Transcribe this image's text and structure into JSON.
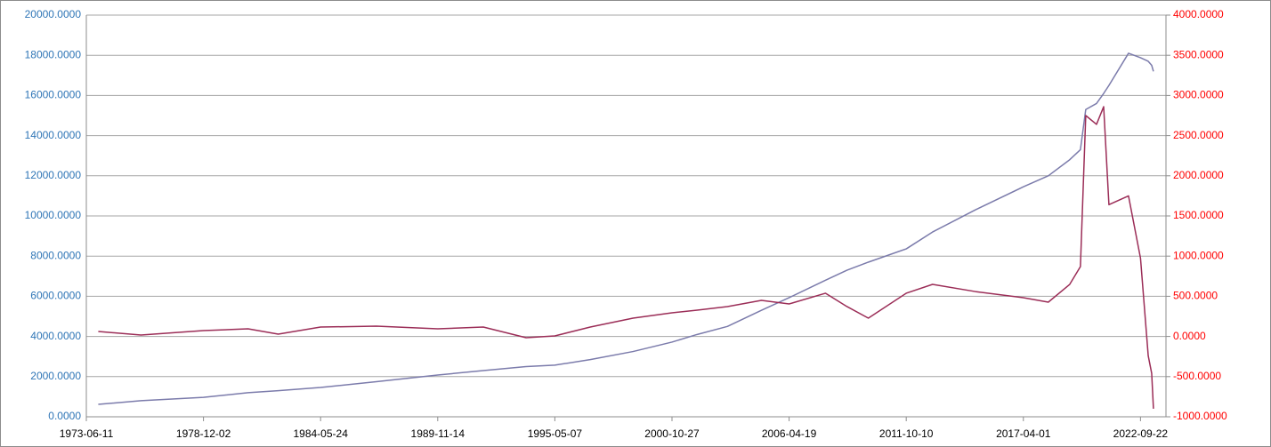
{
  "chart_data": {
    "type": "line",
    "x": [
      "1974-01-01",
      "1976-01-01",
      "1978-12-02",
      "1981-01-01",
      "1982-06-01",
      "1984-05-24",
      "1987-01-01",
      "1989-11-14",
      "1992-01-01",
      "1994-01-01",
      "1995-05-07",
      "1997-01-01",
      "1999-01-01",
      "2000-10-27",
      "2002-01-01",
      "2003-06-01",
      "2005-01-01",
      "2006-04-19",
      "2008-01-01",
      "2009-01-01",
      "2010-01-01",
      "2011-10-10",
      "2013-01-01",
      "2015-01-01",
      "2017-04-01",
      "2018-06-01",
      "2019-06-01",
      "2019-12-01",
      "2020-03-01",
      "2020-09-01",
      "2021-01-01",
      "2021-04-01",
      "2022-03-01",
      "2022-09-22",
      "2023-02-01",
      "2023-04-01",
      "2023-05-01"
    ],
    "series": [
      {
        "color": "#7b7bab",
        "values": [
          620,
          800,
          970,
          1200,
          1300,
          1460,
          1750,
          2080,
          2300,
          2500,
          2570,
          2850,
          3250,
          3720,
          4100,
          4500,
          5300,
          5930,
          6800,
          7300,
          7700,
          8360,
          9200,
          10300,
          11450,
          12000,
          12800,
          13300,
          15300,
          15600,
          16100,
          16500,
          18100,
          17880,
          17700,
          17500,
          17200
        ]
      },
      {
        "color": "#9b2d57",
        "axis": "y2",
        "values": [
          62,
          18,
          73,
          95,
          29,
          117,
          128,
          95,
          117,
          -15,
          7,
          117,
          228,
          294,
          327,
          372,
          449,
          405,
          538,
          372,
          228,
          538,
          648,
          559,
          482,
          427,
          648,
          869,
          2750,
          2640,
          2860,
          1640,
          1750,
          975,
          -240,
          -460,
          -900
        ]
      }
    ],
    "xlim": [
      "1973-06-11",
      "2023-12-01"
    ],
    "xticks": [
      "1973-06-11",
      "1978-12-02",
      "1984-05-24",
      "1989-11-14",
      "1995-05-07",
      "2000-10-27",
      "2006-04-19",
      "2011-10-10",
      "2017-04-01",
      "2022-09-22"
    ],
    "ylim": [
      0,
      20000
    ],
    "yticks": [
      {
        "value": 0,
        "label": "0.0000"
      },
      {
        "value": 2000,
        "label": "2000.0000"
      },
      {
        "value": 4000,
        "label": "4000.0000"
      },
      {
        "value": 6000,
        "label": "6000.0000"
      },
      {
        "value": 8000,
        "label": "8000.0000"
      },
      {
        "value": 10000,
        "label": "10000.0000"
      },
      {
        "value": 12000,
        "label": "12000.0000"
      },
      {
        "value": 14000,
        "label": "14000.0000"
      },
      {
        "value": 16000,
        "label": "16000.0000"
      },
      {
        "value": 18000,
        "label": "18000.0000"
      },
      {
        "value": 20000,
        "label": "20000.0000"
      }
    ],
    "y2lim": [
      -1000,
      4000
    ],
    "y2ticks": [
      {
        "value": -1000,
        "label": "-1000.0000"
      },
      {
        "value": -500,
        "label": "-500.0000"
      },
      {
        "value": 0,
        "label": "0.0000"
      },
      {
        "value": 500,
        "label": "500.0000"
      },
      {
        "value": 1000,
        "label": "1000.0000"
      },
      {
        "value": 1500,
        "label": "1500.0000"
      },
      {
        "value": 2000,
        "label": "2000.0000"
      },
      {
        "value": 2500,
        "label": "2500.0000"
      },
      {
        "value": 3000,
        "label": "3000.0000"
      },
      {
        "value": 3500,
        "label": "3500.0000"
      },
      {
        "value": 4000,
        "label": "4000.0000"
      }
    ],
    "grid": true,
    "ytick_color": "#2e75b6",
    "y2tick_color": "#ff0000"
  }
}
